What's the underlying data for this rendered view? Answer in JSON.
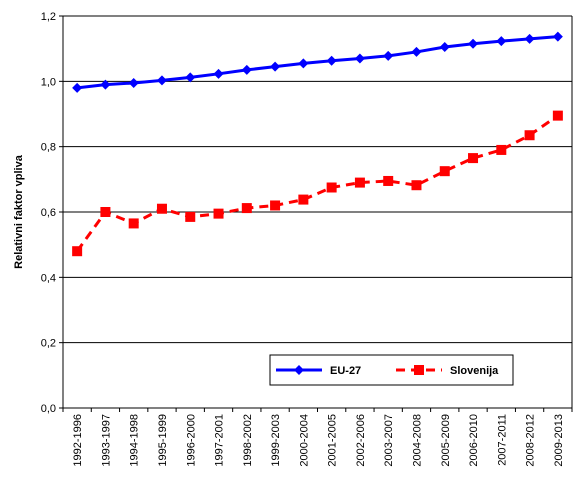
{
  "chart_data": {
    "type": "line",
    "title": "",
    "xlabel": "",
    "ylabel": "Relativni faktor vpliva",
    "ylim": [
      0,
      1.2
    ],
    "yticks": [
      "0,0",
      "0,2",
      "0,4",
      "0,6",
      "0,8",
      "1,0",
      "1,2"
    ],
    "categories": [
      "1992-1996",
      "1993-1997",
      "1994-1998",
      "1995-1999",
      "1996-2000",
      "1997-2001",
      "1998-2002",
      "1999-2003",
      "2000-2004",
      "2001-2005",
      "2002-2006",
      "2003-2007",
      "2004-2008",
      "2005-2009",
      "2006-2010",
      "2007-2011",
      "2008-2012",
      "2009-2013"
    ],
    "series": [
      {
        "name": "EU-27",
        "color": "#0000ff",
        "style": "solid",
        "marker": "diamond",
        "values": [
          0.98,
          0.99,
          0.995,
          1.003,
          1.012,
          1.023,
          1.035,
          1.045,
          1.055,
          1.063,
          1.07,
          1.078,
          1.09,
          1.105,
          1.115,
          1.123,
          1.13,
          1.137
        ]
      },
      {
        "name": "Slovenija",
        "color": "#ff0000",
        "style": "dashed",
        "marker": "square",
        "values": [
          0.48,
          0.6,
          0.565,
          0.61,
          0.585,
          0.595,
          0.612,
          0.62,
          0.638,
          0.675,
          0.69,
          0.695,
          0.682,
          0.725,
          0.765,
          0.79,
          0.835,
          0.895
        ]
      }
    ],
    "grid": true,
    "legend": "bottom-right"
  }
}
